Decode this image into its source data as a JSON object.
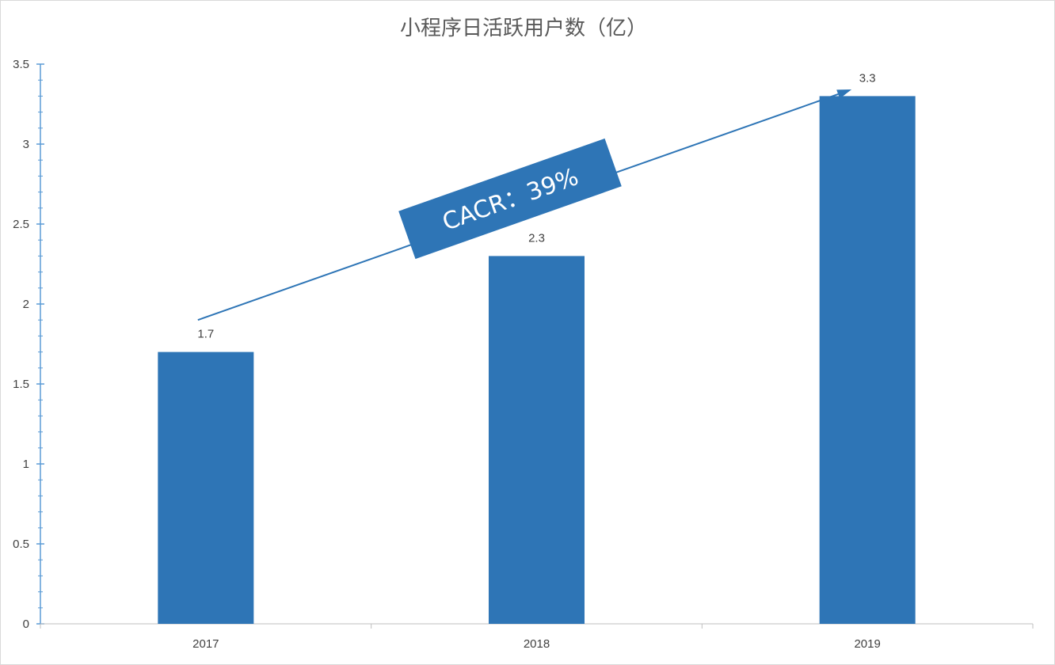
{
  "chart_data": {
    "type": "bar",
    "title": "小程序日活跃用户数（亿）",
    "xlabel": "",
    "ylabel": "",
    "categories": [
      "2017",
      "2018",
      "2019"
    ],
    "values": [
      1.7,
      2.3,
      3.3
    ],
    "data_labels": [
      "1.7",
      "2.3",
      "3.3"
    ],
    "ylim": [
      0,
      3.5
    ],
    "yticks": [
      0,
      0.5,
      1,
      1.5,
      2,
      2.5,
      3,
      3.5
    ],
    "ytick_labels": [
      "0",
      "0.5",
      "1",
      "1.5",
      "2",
      "2.5",
      "3",
      "3.5"
    ],
    "grid": false,
    "legend": "none",
    "bar_color": "#2E75B6",
    "annotation": {
      "text": "CACR：39%",
      "color": "#2E75B6",
      "arrow_from": {
        "category": "2017",
        "value": 1.9
      },
      "arrow_to": {
        "category": "2019",
        "value": 3.5
      }
    }
  }
}
